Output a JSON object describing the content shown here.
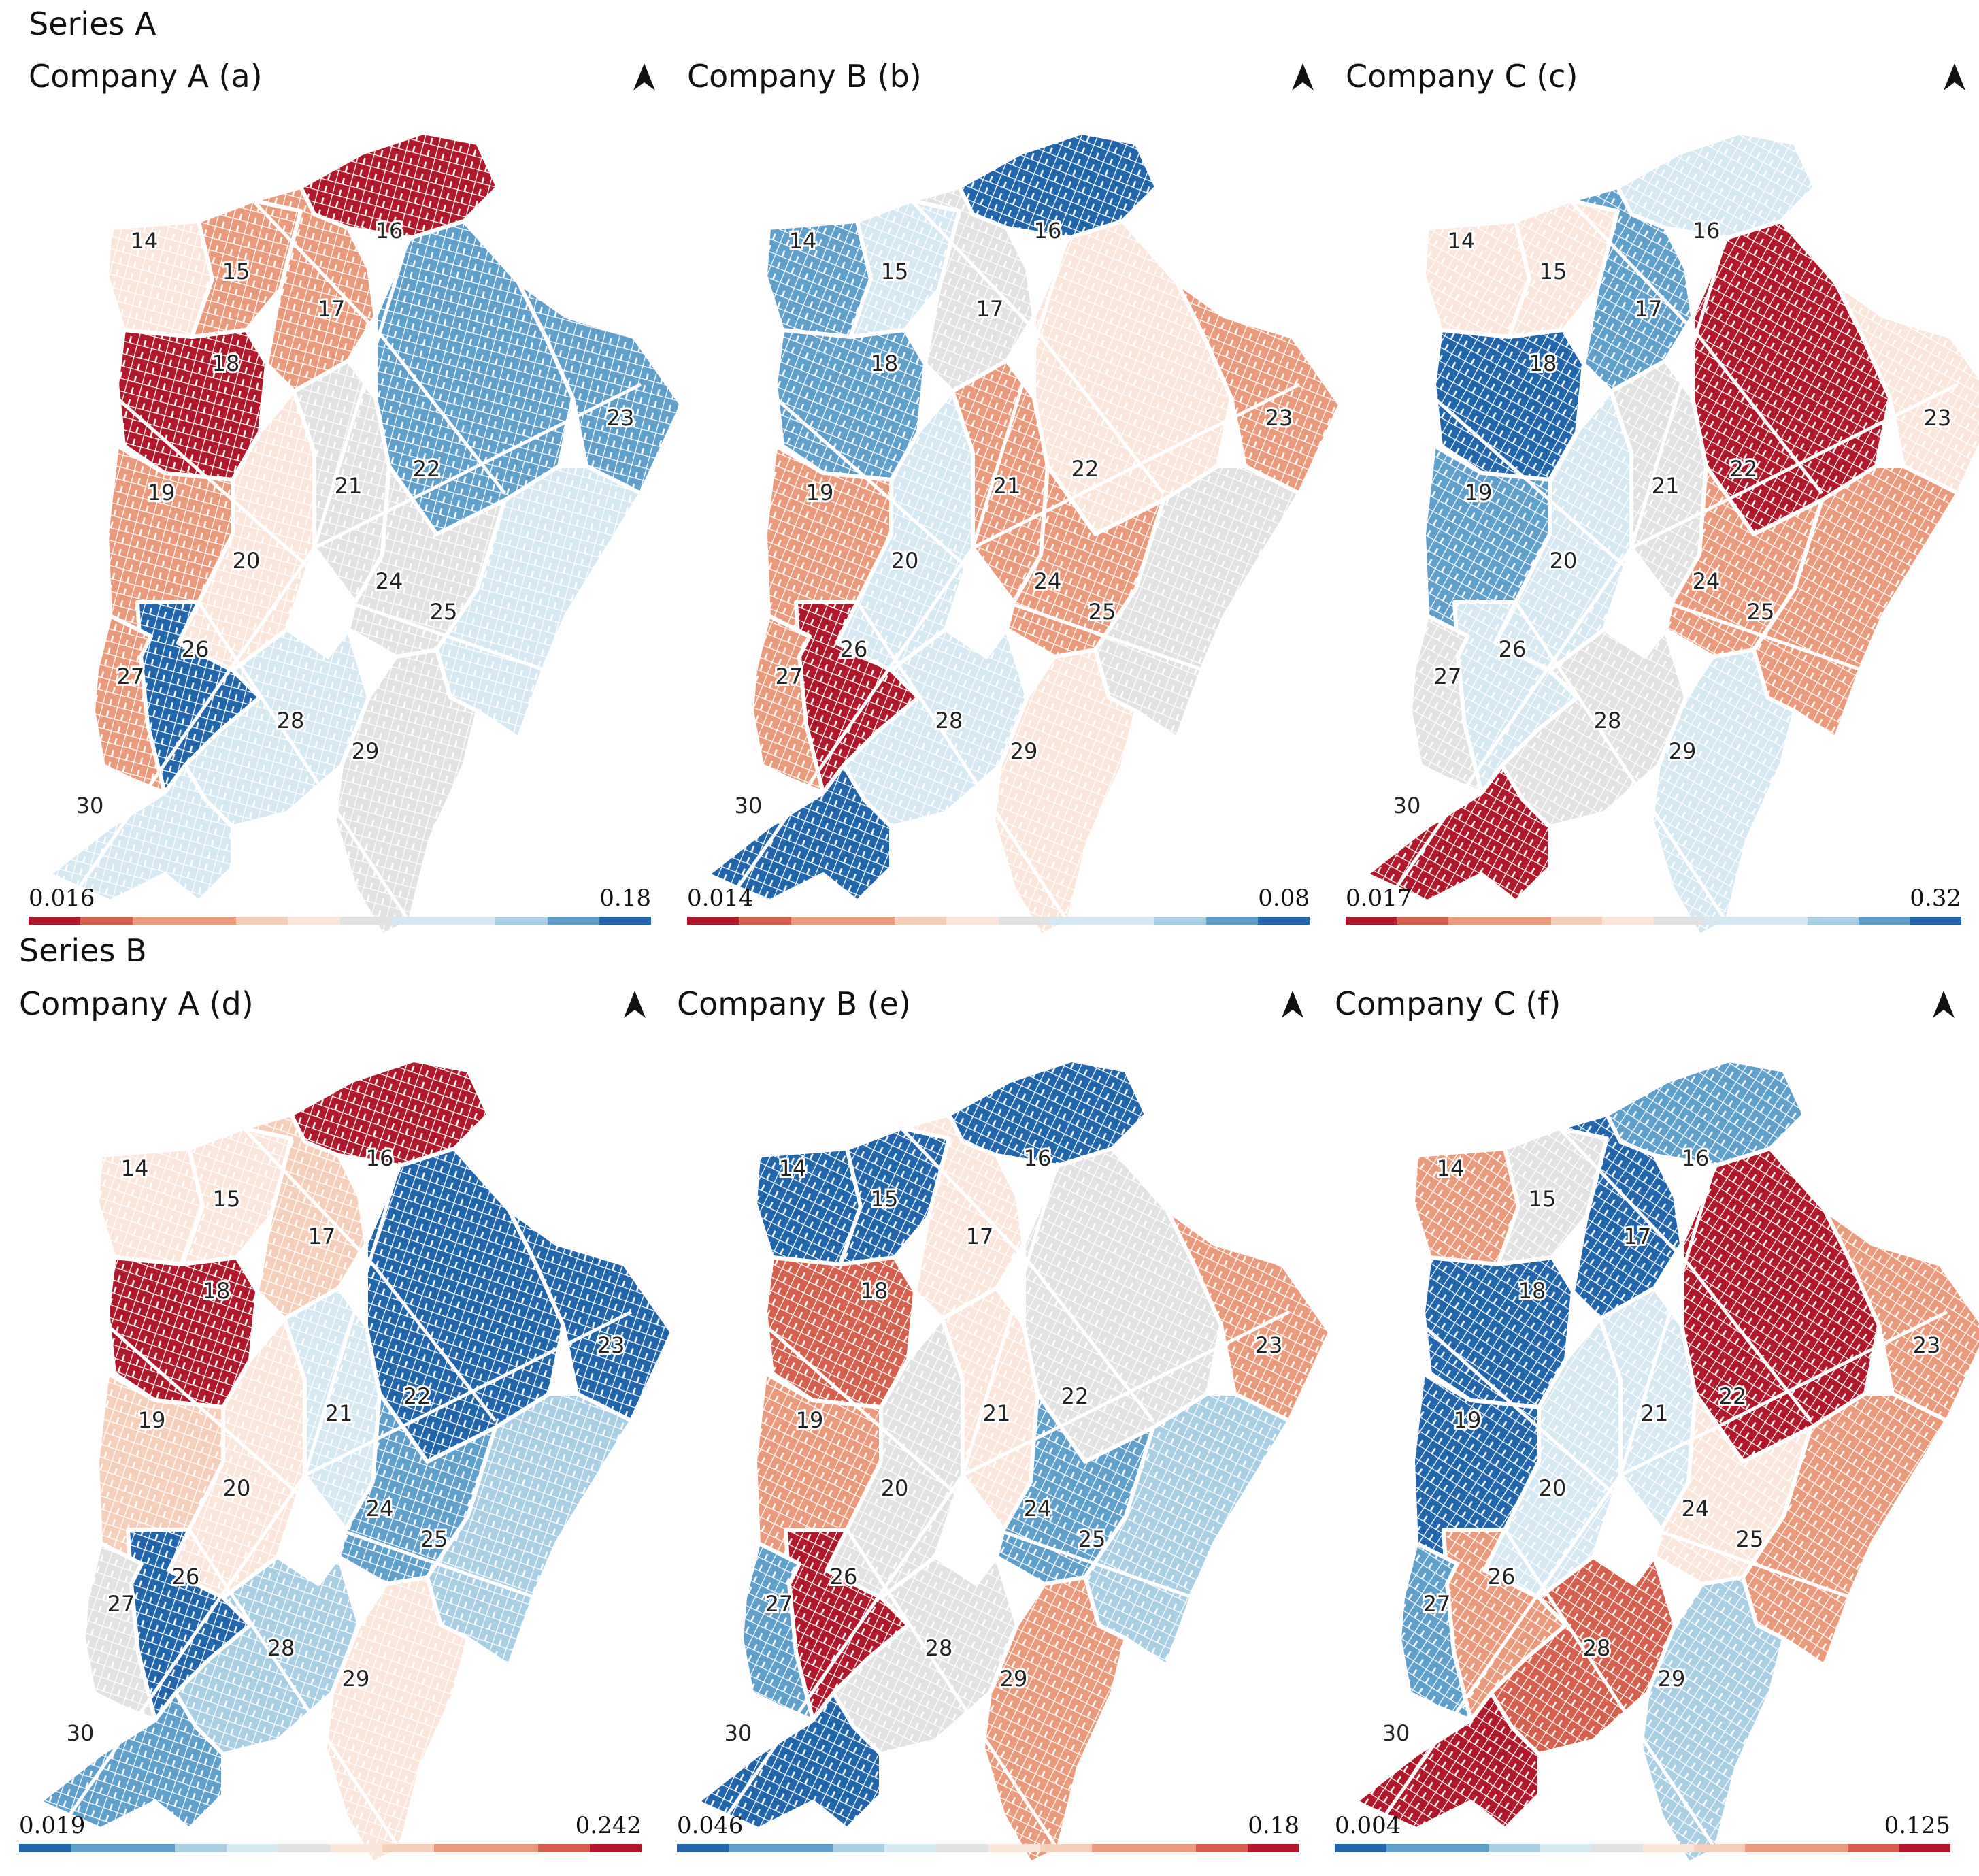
{
  "colors": {
    "dark_red": "#b2182b",
    "red": "#d6604d",
    "salmon": "#ec9a7c",
    "light_salmon": "#f6cfba",
    "pale_salmon": "#fbe6dc",
    "grey": "#e2e2e2",
    "pale_blue": "#d6e8f2",
    "light_blue": "#a9cfe5",
    "blue": "#5e9fcc",
    "dark_blue": "#2166ac"
  },
  "series": [
    {
      "title": "Series A",
      "panels": [
        {
          "title": "Company A (a)",
          "legend_min": "0.016",
          "legend_max": "0.18",
          "legend_direction": "red-to-blue",
          "regions": {
            "14": "pale_salmon",
            "15": "salmon",
            "16": "dark_red",
            "17": "salmon",
            "18": "dark_red",
            "19": "salmon",
            "20": "pale_salmon",
            "21": "grey",
            "22": "blue",
            "23": "blue",
            "24": "grey",
            "25": "pale_blue",
            "26": "dark_blue",
            "27": "salmon",
            "28": "pale_blue",
            "29": "grey",
            "30": "pale_blue"
          }
        },
        {
          "title": "Company B (b)",
          "legend_min": "0.014",
          "legend_max": "0.08",
          "legend_direction": "red-to-blue",
          "regions": {
            "14": "blue",
            "15": "pale_blue",
            "16": "dark_blue",
            "17": "grey",
            "18": "blue",
            "19": "salmon",
            "20": "pale_blue",
            "21": "salmon",
            "22": "pale_salmon",
            "23": "salmon",
            "24": "salmon",
            "25": "grey",
            "26": "dark_red",
            "27": "salmon",
            "28": "pale_blue",
            "29": "pale_salmon",
            "30": "dark_blue"
          }
        },
        {
          "title": "Company C (c)",
          "legend_min": "0.017",
          "legend_max": "0.32",
          "legend_direction": "red-to-blue",
          "regions": {
            "14": "pale_salmon",
            "15": "pale_salmon",
            "16": "pale_blue",
            "17": "blue",
            "18": "dark_blue",
            "19": "blue",
            "20": "pale_blue",
            "21": "grey",
            "22": "dark_red",
            "23": "pale_salmon",
            "24": "salmon",
            "25": "salmon",
            "26": "pale_blue",
            "27": "grey",
            "28": "grey",
            "29": "pale_blue",
            "30": "dark_red"
          }
        }
      ]
    },
    {
      "title": "Series B",
      "panels": [
        {
          "title": "Company A (d)",
          "legend_min": "0.019",
          "legend_max": "0.242",
          "legend_direction": "blue-to-red",
          "regions": {
            "14": "pale_salmon",
            "15": "pale_salmon",
            "16": "dark_red",
            "17": "light_salmon",
            "18": "dark_red",
            "19": "light_salmon",
            "20": "pale_salmon",
            "21": "pale_blue",
            "22": "dark_blue",
            "23": "dark_blue",
            "24": "blue",
            "25": "light_blue",
            "26": "dark_blue",
            "27": "grey",
            "28": "light_blue",
            "29": "pale_salmon",
            "30": "blue"
          }
        },
        {
          "title": "Company B (e)",
          "legend_min": "0.046",
          "legend_max": "0.18",
          "legend_direction": "blue-to-red",
          "regions": {
            "14": "dark_blue",
            "15": "dark_blue",
            "16": "dark_blue",
            "17": "pale_salmon",
            "18": "red",
            "19": "salmon",
            "20": "grey",
            "21": "pale_salmon",
            "22": "grey",
            "23": "salmon",
            "24": "blue",
            "25": "light_blue",
            "26": "dark_red",
            "27": "blue",
            "28": "grey",
            "29": "salmon",
            "30": "dark_blue"
          }
        },
        {
          "title": "Company C (f)",
          "legend_min": "0.004",
          "legend_max": "0.125",
          "legend_direction": "blue-to-red",
          "regions": {
            "14": "salmon",
            "15": "grey",
            "16": "blue",
            "17": "dark_blue",
            "18": "dark_blue",
            "19": "dark_blue",
            "20": "pale_blue",
            "21": "pale_blue",
            "22": "dark_red",
            "23": "salmon",
            "24": "pale_salmon",
            "25": "salmon",
            "26": "salmon",
            "27": "blue",
            "28": "red",
            "29": "light_blue",
            "30": "dark_red"
          }
        }
      ]
    }
  ]
}
